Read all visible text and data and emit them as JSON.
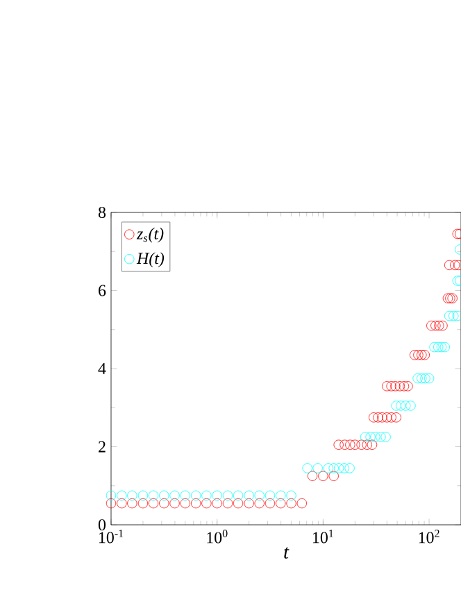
{
  "chart_data": {
    "type": "scatter",
    "xlabel": "t",
    "log": "x",
    "marker": "circle",
    "legend": "top left",
    "grid": false,
    "xlim": [
      0.1,
      200
    ],
    "ylim": [
      0,
      8
    ],
    "xticks": [
      {
        "value": 0.1,
        "label": "10$^{-1}$"
      },
      {
        "value": 1,
        "label": "10$^{0}$"
      },
      {
        "value": 10,
        "label": "10$^{1}$"
      },
      {
        "value": 100,
        "label": "10$^{2}$"
      }
    ],
    "yticks": [
      0,
      2,
      4,
      6,
      8
    ],
    "series": [
      {
        "name": "z$_{s}$(t)",
        "color": "#ff0000",
        "x": [
          0.1,
          0.126,
          0.158,
          0.2,
          0.251,
          0.316,
          0.398,
          0.501,
          0.631,
          0.794,
          1,
          1.26,
          1.58,
          2,
          2.51,
          3.16,
          3.98,
          5.01,
          6.31,
          7.94,
          10,
          12.6,
          14,
          16,
          18,
          20,
          23,
          26,
          29,
          30,
          33,
          36,
          40,
          44,
          49,
          40,
          44,
          48,
          53,
          58,
          63,
          73,
          79,
          85,
          91,
          105,
          115,
          124,
          134,
          150,
          158,
          166,
          155,
          175,
          190,
          185,
          195
        ],
        "values": [
          0.55,
          0.55,
          0.55,
          0.55,
          0.55,
          0.55,
          0.55,
          0.55,
          0.55,
          0.55,
          0.55,
          0.55,
          0.55,
          0.55,
          0.55,
          0.55,
          0.55,
          0.55,
          0.55,
          1.25,
          1.25,
          1.25,
          2.05,
          2.05,
          2.05,
          2.05,
          2.05,
          2.05,
          2.05,
          2.75,
          2.75,
          2.75,
          2.75,
          2.75,
          2.75,
          3.55,
          3.55,
          3.55,
          3.55,
          3.55,
          3.55,
          4.35,
          4.35,
          4.35,
          4.35,
          5.1,
          5.1,
          5.1,
          5.1,
          5.8,
          5.8,
          5.8,
          6.65,
          6.65,
          6.65,
          7.45,
          7.45
        ]
      },
      {
        "name": "H(t)",
        "color": "#00ffff",
        "x": [
          0.1,
          0.126,
          0.158,
          0.2,
          0.251,
          0.316,
          0.398,
          0.501,
          0.631,
          0.794,
          1,
          1.26,
          1.58,
          2,
          2.51,
          3.16,
          3.98,
          5.01,
          7.1,
          8.9,
          11.2,
          12.6,
          14.1,
          15.8,
          17.8,
          25,
          28,
          31,
          35,
          39,
          49,
          54,
          60,
          67,
          78,
          85,
          92,
          100,
          112,
          122,
          131,
          141,
          155,
          170,
          185,
          185,
          195,
          195
        ],
        "values": [
          0.75,
          0.75,
          0.75,
          0.75,
          0.75,
          0.75,
          0.75,
          0.75,
          0.75,
          0.75,
          0.75,
          0.75,
          0.75,
          0.75,
          0.75,
          0.75,
          0.75,
          0.75,
          1.45,
          1.45,
          1.45,
          1.45,
          1.45,
          1.45,
          1.45,
          2.25,
          2.25,
          2.25,
          2.25,
          2.25,
          3.05,
          3.05,
          3.05,
          3.05,
          3.75,
          3.75,
          3.75,
          3.75,
          4.55,
          4.55,
          4.55,
          4.55,
          5.35,
          5.35,
          5.35,
          6.25,
          6.25,
          7.05
        ]
      }
    ]
  }
}
